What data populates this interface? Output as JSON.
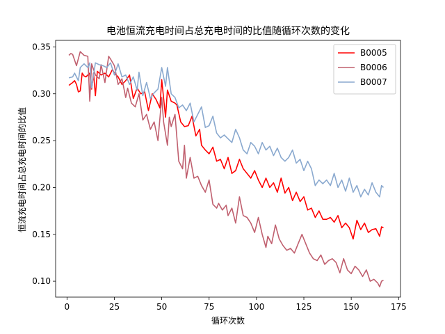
{
  "chart_data": {
    "type": "line",
    "title": "电池恒流充电时间占总充电时间的比值随循环次数的变化",
    "xlabel": "循环次数",
    "ylabel": "恒流充电时间占总充电时间的比值",
    "xlim": [
      -6,
      176
    ],
    "ylim": [
      0.083,
      0.357
    ],
    "xticks": [
      0,
      25,
      50,
      75,
      100,
      125,
      150,
      175
    ],
    "yticks": [
      0.1,
      0.15,
      0.2,
      0.25,
      0.3,
      0.35
    ],
    "xtick_labels": [
      "0",
      "25",
      "50",
      "75",
      "100",
      "125",
      "150",
      "175"
    ],
    "ytick_labels": [
      "0.10",
      "0.15",
      "0.20",
      "0.25",
      "0.30",
      "0.35"
    ],
    "grid": false,
    "legend_position": "top-right",
    "series": [
      {
        "name": "B0005",
        "color": "#ff0000",
        "points": [
          [
            1,
            0.309
          ],
          [
            3,
            0.312
          ],
          [
            4,
            0.314
          ],
          [
            5,
            0.31
          ],
          [
            6,
            0.302
          ],
          [
            7,
            0.303
          ],
          [
            8,
            0.322
          ],
          [
            9,
            0.319
          ],
          [
            10,
            0.318
          ],
          [
            11,
            0.32
          ],
          [
            12,
            0.322
          ],
          [
            13,
            0.305
          ],
          [
            14,
            0.322
          ],
          [
            15,
            0.298
          ],
          [
            16,
            0.324
          ],
          [
            18,
            0.32
          ],
          [
            20,
            0.322
          ],
          [
            22,
            0.318
          ],
          [
            24,
            0.326
          ],
          [
            25,
            0.322
          ],
          [
            27,
            0.318
          ],
          [
            29,
            0.31
          ],
          [
            31,
            0.314
          ],
          [
            33,
            0.32
          ],
          [
            35,
            0.295
          ],
          [
            37,
            0.306
          ],
          [
            39,
            0.3
          ],
          [
            41,
            0.302
          ],
          [
            43,
            0.282
          ],
          [
            45,
            0.3
          ],
          [
            47,
            0.294
          ],
          [
            49,
            0.285
          ],
          [
            50,
            0.315
          ],
          [
            52,
            0.275
          ],
          [
            53,
            0.304
          ],
          [
            55,
            0.292
          ],
          [
            57,
            0.29
          ],
          [
            58,
            0.288
          ],
          [
            60,
            0.27
          ],
          [
            62,
            0.265
          ],
          [
            64,
            0.266
          ],
          [
            66,
            0.276
          ],
          [
            68,
            0.255
          ],
          [
            70,
            0.262
          ],
          [
            71,
            0.245
          ],
          [
            73,
            0.24
          ],
          [
            75,
            0.236
          ],
          [
            77,
            0.243
          ],
          [
            79,
            0.228
          ],
          [
            81,
            0.23
          ],
          [
            83,
            0.22
          ],
          [
            85,
            0.232
          ],
          [
            87,
            0.215
          ],
          [
            89,
            0.218
          ],
          [
            91,
            0.23
          ],
          [
            93,
            0.22
          ],
          [
            95,
            0.215
          ],
          [
            97,
            0.21
          ],
          [
            99,
            0.218
          ],
          [
            101,
            0.208
          ],
          [
            103,
            0.2
          ],
          [
            105,
            0.21
          ],
          [
            107,
            0.2
          ],
          [
            109,
            0.205
          ],
          [
            111,
            0.195
          ],
          [
            113,
            0.21
          ],
          [
            115,
            0.194
          ],
          [
            117,
            0.2
          ],
          [
            119,
            0.186
          ],
          [
            121,
            0.195
          ],
          [
            123,
            0.185
          ],
          [
            125,
            0.19
          ],
          [
            127,
            0.176
          ],
          [
            129,
            0.178
          ],
          [
            131,
            0.168
          ],
          [
            133,
            0.175
          ],
          [
            135,
            0.166
          ],
          [
            137,
            0.166
          ],
          [
            139,
            0.168
          ],
          [
            141,
            0.163
          ],
          [
            143,
            0.17
          ],
          [
            145,
            0.157
          ],
          [
            147,
            0.162
          ],
          [
            149,
            0.157
          ],
          [
            151,
            0.145
          ],
          [
            153,
            0.165
          ],
          [
            155,
            0.155
          ],
          [
            157,
            0.162
          ],
          [
            159,
            0.152
          ],
          [
            161,
            0.155
          ],
          [
            163,
            0.156
          ],
          [
            165,
            0.148
          ],
          [
            166,
            0.158
          ],
          [
            167,
            0.157
          ]
        ]
      },
      {
        "name": "B0006",
        "color": "#c0606f",
        "points": [
          [
            1,
            0.341
          ],
          [
            2,
            0.343
          ],
          [
            3,
            0.342
          ],
          [
            5,
            0.33
          ],
          [
            7,
            0.345
          ],
          [
            9,
            0.341
          ],
          [
            11,
            0.34
          ],
          [
            12,
            0.292
          ],
          [
            13,
            0.332
          ],
          [
            15,
            0.32
          ],
          [
            17,
            0.316
          ],
          [
            18,
            0.331
          ],
          [
            20,
            0.312
          ],
          [
            22,
            0.34
          ],
          [
            23,
            0.337
          ],
          [
            25,
            0.33
          ],
          [
            27,
            0.31
          ],
          [
            29,
            0.316
          ],
          [
            31,
            0.296
          ],
          [
            32,
            0.306
          ],
          [
            34,
            0.29
          ],
          [
            36,
            0.286
          ],
          [
            38,
            0.3
          ],
          [
            40,
            0.272
          ],
          [
            42,
            0.278
          ],
          [
            44,
            0.262
          ],
          [
            46,
            0.27
          ],
          [
            48,
            0.25
          ],
          [
            50,
            0.296
          ],
          [
            51,
            0.27
          ],
          [
            53,
            0.245
          ],
          [
            54,
            0.275
          ],
          [
            55,
            0.265
          ],
          [
            57,
            0.278
          ],
          [
            59,
            0.228
          ],
          [
            61,
            0.22
          ],
          [
            62,
            0.245
          ],
          [
            63,
            0.21
          ],
          [
            65,
            0.232
          ],
          [
            67,
            0.21
          ],
          [
            69,
            0.212
          ],
          [
            71,
            0.202
          ],
          [
            73,
            0.195
          ],
          [
            75,
            0.208
          ],
          [
            77,
            0.182
          ],
          [
            79,
            0.178
          ],
          [
            80,
            0.183
          ],
          [
            82,
            0.176
          ],
          [
            84,
            0.181
          ],
          [
            85,
            0.17
          ],
          [
            87,
            0.178
          ],
          [
            89,
            0.162
          ],
          [
            91,
            0.19
          ],
          [
            93,
            0.17
          ],
          [
            95,
            0.168
          ],
          [
            97,
            0.162
          ],
          [
            99,
            0.152
          ],
          [
            101,
            0.168
          ],
          [
            103,
            0.15
          ],
          [
            105,
            0.136
          ],
          [
            106,
            0.148
          ],
          [
            108,
            0.14
          ],
          [
            110,
            0.16
          ],
          [
            112,
            0.145
          ],
          [
            114,
            0.138
          ],
          [
            116,
            0.133
          ],
          [
            118,
            0.135
          ],
          [
            120,
            0.13
          ],
          [
            122,
            0.14
          ],
          [
            124,
            0.15
          ],
          [
            126,
            0.14
          ],
          [
            128,
            0.13
          ],
          [
            130,
            0.124
          ],
          [
            132,
            0.122
          ],
          [
            134,
            0.128
          ],
          [
            136,
            0.118
          ],
          [
            138,
            0.122
          ],
          [
            140,
            0.124
          ],
          [
            142,
            0.12
          ],
          [
            144,
            0.109
          ],
          [
            146,
            0.124
          ],
          [
            148,
            0.112
          ],
          [
            150,
            0.108
          ],
          [
            152,
            0.116
          ],
          [
            154,
            0.112
          ],
          [
            156,
            0.105
          ],
          [
            158,
            0.112
          ],
          [
            160,
            0.1
          ],
          [
            162,
            0.102
          ],
          [
            164,
            0.098
          ],
          [
            165,
            0.094
          ],
          [
            166,
            0.1
          ],
          [
            167,
            0.101
          ]
        ]
      },
      {
        "name": "B0007",
        "color": "#8aa9cf",
        "points": [
          [
            1,
            0.317
          ],
          [
            3,
            0.318
          ],
          [
            4,
            0.322
          ],
          [
            6,
            0.314
          ],
          [
            7,
            0.328
          ],
          [
            9,
            0.332
          ],
          [
            11,
            0.328
          ],
          [
            12,
            0.333
          ],
          [
            13,
            0.306
          ],
          [
            15,
            0.333
          ],
          [
            17,
            0.331
          ],
          [
            19,
            0.33
          ],
          [
            21,
            0.328
          ],
          [
            23,
            0.333
          ],
          [
            25,
            0.32
          ],
          [
            27,
            0.332
          ],
          [
            29,
            0.318
          ],
          [
            31,
            0.32
          ],
          [
            33,
            0.31
          ],
          [
            35,
            0.318
          ],
          [
            37,
            0.304
          ],
          [
            38,
            0.323
          ],
          [
            40,
            0.298
          ],
          [
            42,
            0.312
          ],
          [
            44,
            0.295
          ],
          [
            46,
            0.301
          ],
          [
            48,
            0.305
          ],
          [
            50,
            0.328
          ],
          [
            52,
            0.308
          ],
          [
            53,
            0.328
          ],
          [
            55,
            0.3
          ],
          [
            57,
            0.296
          ],
          [
            59,
            0.285
          ],
          [
            61,
            0.288
          ],
          [
            63,
            0.282
          ],
          [
            65,
            0.29
          ],
          [
            67,
            0.27
          ],
          [
            69,
            0.278
          ],
          [
            71,
            0.286
          ],
          [
            73,
            0.264
          ],
          [
            75,
            0.266
          ],
          [
            77,
            0.276
          ],
          [
            79,
            0.258
          ],
          [
            81,
            0.253
          ],
          [
            83,
            0.256
          ],
          [
            85,
            0.252
          ],
          [
            87,
            0.248
          ],
          [
            89,
            0.262
          ],
          [
            91,
            0.253
          ],
          [
            93,
            0.24
          ],
          [
            95,
            0.236
          ],
          [
            97,
            0.248
          ],
          [
            99,
            0.244
          ],
          [
            101,
            0.236
          ],
          [
            103,
            0.248
          ],
          [
            105,
            0.24
          ],
          [
            107,
            0.244
          ],
          [
            109,
            0.234
          ],
          [
            111,
            0.242
          ],
          [
            113,
            0.232
          ],
          [
            115,
            0.228
          ],
          [
            117,
            0.232
          ],
          [
            119,
            0.24
          ],
          [
            121,
            0.226
          ],
          [
            123,
            0.23
          ],
          [
            125,
            0.218
          ],
          [
            127,
            0.228
          ],
          [
            129,
            0.22
          ],
          [
            131,
            0.202
          ],
          [
            133,
            0.208
          ],
          [
            135,
            0.204
          ],
          [
            137,
            0.208
          ],
          [
            139,
            0.202
          ],
          [
            141,
            0.215
          ],
          [
            143,
            0.2
          ],
          [
            145,
            0.208
          ],
          [
            147,
            0.196
          ],
          [
            149,
            0.21
          ],
          [
            151,
            0.195
          ],
          [
            153,
            0.202
          ],
          [
            155,
            0.19
          ],
          [
            157,
            0.198
          ],
          [
            159,
            0.192
          ],
          [
            161,
            0.205
          ],
          [
            163,
            0.195
          ],
          [
            165,
            0.19
          ],
          [
            166,
            0.202
          ],
          [
            167,
            0.2
          ]
        ]
      }
    ]
  }
}
